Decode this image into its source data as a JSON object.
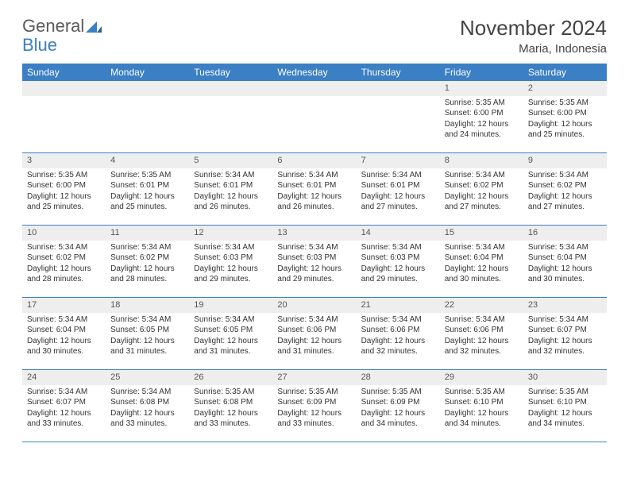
{
  "brand": {
    "part1": "General",
    "part2": "Blue"
  },
  "colors": {
    "header_bg": "#3b7fc4",
    "header_text": "#ffffff",
    "daynum_bg": "#eeeeee",
    "border": "#3b7fc4",
    "text": "#333333"
  },
  "title": {
    "month": "November 2024",
    "location": "Maria, Indonesia"
  },
  "weekdays": [
    "Sunday",
    "Monday",
    "Tuesday",
    "Wednesday",
    "Thursday",
    "Friday",
    "Saturday"
  ],
  "weeks": [
    [
      null,
      null,
      null,
      null,
      null,
      {
        "d": "1",
        "sr": "5:35 AM",
        "ss": "6:00 PM",
        "dl": "12 hours and 24 minutes."
      },
      {
        "d": "2",
        "sr": "5:35 AM",
        "ss": "6:00 PM",
        "dl": "12 hours and 25 minutes."
      }
    ],
    [
      {
        "d": "3",
        "sr": "5:35 AM",
        "ss": "6:00 PM",
        "dl": "12 hours and 25 minutes."
      },
      {
        "d": "4",
        "sr": "5:35 AM",
        "ss": "6:01 PM",
        "dl": "12 hours and 25 minutes."
      },
      {
        "d": "5",
        "sr": "5:34 AM",
        "ss": "6:01 PM",
        "dl": "12 hours and 26 minutes."
      },
      {
        "d": "6",
        "sr": "5:34 AM",
        "ss": "6:01 PM",
        "dl": "12 hours and 26 minutes."
      },
      {
        "d": "7",
        "sr": "5:34 AM",
        "ss": "6:01 PM",
        "dl": "12 hours and 27 minutes."
      },
      {
        "d": "8",
        "sr": "5:34 AM",
        "ss": "6:02 PM",
        "dl": "12 hours and 27 minutes."
      },
      {
        "d": "9",
        "sr": "5:34 AM",
        "ss": "6:02 PM",
        "dl": "12 hours and 27 minutes."
      }
    ],
    [
      {
        "d": "10",
        "sr": "5:34 AM",
        "ss": "6:02 PM",
        "dl": "12 hours and 28 minutes."
      },
      {
        "d": "11",
        "sr": "5:34 AM",
        "ss": "6:02 PM",
        "dl": "12 hours and 28 minutes."
      },
      {
        "d": "12",
        "sr": "5:34 AM",
        "ss": "6:03 PM",
        "dl": "12 hours and 29 minutes."
      },
      {
        "d": "13",
        "sr": "5:34 AM",
        "ss": "6:03 PM",
        "dl": "12 hours and 29 minutes."
      },
      {
        "d": "14",
        "sr": "5:34 AM",
        "ss": "6:03 PM",
        "dl": "12 hours and 29 minutes."
      },
      {
        "d": "15",
        "sr": "5:34 AM",
        "ss": "6:04 PM",
        "dl": "12 hours and 30 minutes."
      },
      {
        "d": "16",
        "sr": "5:34 AM",
        "ss": "6:04 PM",
        "dl": "12 hours and 30 minutes."
      }
    ],
    [
      {
        "d": "17",
        "sr": "5:34 AM",
        "ss": "6:04 PM",
        "dl": "12 hours and 30 minutes."
      },
      {
        "d": "18",
        "sr": "5:34 AM",
        "ss": "6:05 PM",
        "dl": "12 hours and 31 minutes."
      },
      {
        "d": "19",
        "sr": "5:34 AM",
        "ss": "6:05 PM",
        "dl": "12 hours and 31 minutes."
      },
      {
        "d": "20",
        "sr": "5:34 AM",
        "ss": "6:06 PM",
        "dl": "12 hours and 31 minutes."
      },
      {
        "d": "21",
        "sr": "5:34 AM",
        "ss": "6:06 PM",
        "dl": "12 hours and 32 minutes."
      },
      {
        "d": "22",
        "sr": "5:34 AM",
        "ss": "6:06 PM",
        "dl": "12 hours and 32 minutes."
      },
      {
        "d": "23",
        "sr": "5:34 AM",
        "ss": "6:07 PM",
        "dl": "12 hours and 32 minutes."
      }
    ],
    [
      {
        "d": "24",
        "sr": "5:34 AM",
        "ss": "6:07 PM",
        "dl": "12 hours and 33 minutes."
      },
      {
        "d": "25",
        "sr": "5:34 AM",
        "ss": "6:08 PM",
        "dl": "12 hours and 33 minutes."
      },
      {
        "d": "26",
        "sr": "5:35 AM",
        "ss": "6:08 PM",
        "dl": "12 hours and 33 minutes."
      },
      {
        "d": "27",
        "sr": "5:35 AM",
        "ss": "6:09 PM",
        "dl": "12 hours and 33 minutes."
      },
      {
        "d": "28",
        "sr": "5:35 AM",
        "ss": "6:09 PM",
        "dl": "12 hours and 34 minutes."
      },
      {
        "d": "29",
        "sr": "5:35 AM",
        "ss": "6:10 PM",
        "dl": "12 hours and 34 minutes."
      },
      {
        "d": "30",
        "sr": "5:35 AM",
        "ss": "6:10 PM",
        "dl": "12 hours and 34 minutes."
      }
    ]
  ],
  "labels": {
    "sunrise": "Sunrise: ",
    "sunset": "Sunset: ",
    "daylight": "Daylight: "
  }
}
